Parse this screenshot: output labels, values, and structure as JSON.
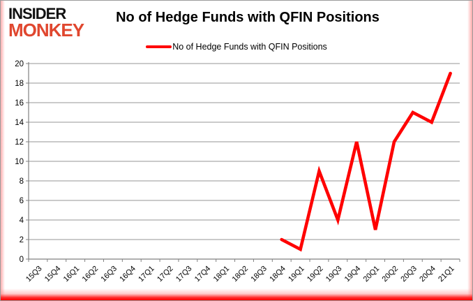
{
  "logo": {
    "line1": "INSIDER",
    "line2": "MONKEY"
  },
  "header": {
    "title": "No of Hedge Funds with QFIN Positions"
  },
  "legend": {
    "label": "No of Hedge Funds with QFIN Positions"
  },
  "colors": {
    "line": "#FF0000",
    "logo_black": "#111111",
    "logo_red": "#E0472F",
    "axis": "#808080",
    "grid": "#969696",
    "tick_text": "#000000",
    "frame_glow": "#FF6E6E"
  },
  "chart_data": {
    "type": "line",
    "title": "No of Hedge Funds with QFIN Positions",
    "categories": [
      "15Q3",
      "15Q4",
      "16Q1",
      "16Q2",
      "16Q3",
      "16Q4",
      "17Q1",
      "17Q2",
      "17Q3",
      "17Q4",
      "18Q1",
      "18Q2",
      "18Q3",
      "18Q4",
      "19Q1",
      "19Q2",
      "19Q3",
      "19Q4",
      "20Q1",
      "20Q2",
      "20Q3",
      "20Q4",
      "21Q1"
    ],
    "series": [
      {
        "name": "No of Hedge Funds with QFIN Positions",
        "values": [
          null,
          null,
          null,
          null,
          null,
          null,
          null,
          null,
          null,
          null,
          null,
          null,
          null,
          2,
          1,
          9,
          4,
          12,
          3,
          12,
          15,
          14,
          19
        ]
      }
    ],
    "xlabel": "",
    "ylabel": "",
    "ylim": [
      0,
      20
    ],
    "ytick_step": 2,
    "grid": true,
    "legend_position": "top"
  }
}
